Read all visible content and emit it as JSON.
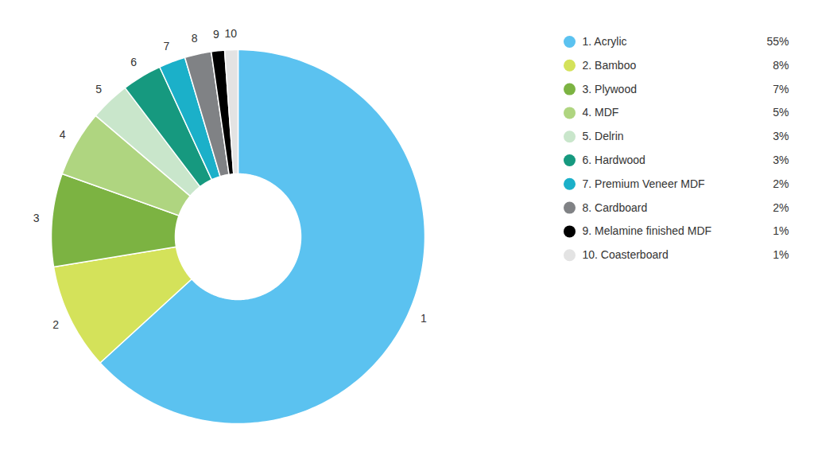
{
  "chart_data": {
    "type": "pie",
    "categories": [
      "1. Acrylic",
      "2. Bamboo",
      "3. Plywood",
      "4. MDF",
      "5. Delrin",
      "6. Hardwood",
      "7. Premium Veneer MDF",
      "8. Cardboard",
      "9. Melamine finished MDF",
      "10. Coasterboard"
    ],
    "labels": [
      "1",
      "2",
      "3",
      "4",
      "5",
      "6",
      "7",
      "8",
      "9",
      "10"
    ],
    "values": [
      55,
      8,
      7,
      5,
      3,
      3,
      2,
      2,
      1,
      1
    ],
    "value_labels": [
      "55%",
      "8%",
      "7%",
      "5%",
      "3%",
      "3%",
      "2%",
      "2%",
      "1%",
      "1%"
    ],
    "colors": [
      "#5bc2f0",
      "#d4e25a",
      "#7cb342",
      "#afd580",
      "#c9e6cb",
      "#16997f",
      "#1bb0c9",
      "#808285",
      "#000000",
      "#e3e3e3"
    ],
    "legend": "right"
  }
}
